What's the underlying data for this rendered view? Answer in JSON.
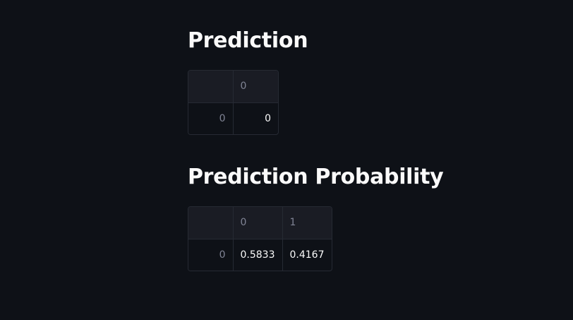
{
  "prediction": {
    "title": "Prediction",
    "columns": [
      "0"
    ],
    "rows": [
      {
        "index": "0",
        "values": [
          "0"
        ]
      }
    ]
  },
  "probability": {
    "title": "Prediction Probability",
    "columns": [
      "0",
      "1"
    ],
    "rows": [
      {
        "index": "0",
        "values": [
          "0.5833",
          "0.4167"
        ]
      }
    ]
  }
}
